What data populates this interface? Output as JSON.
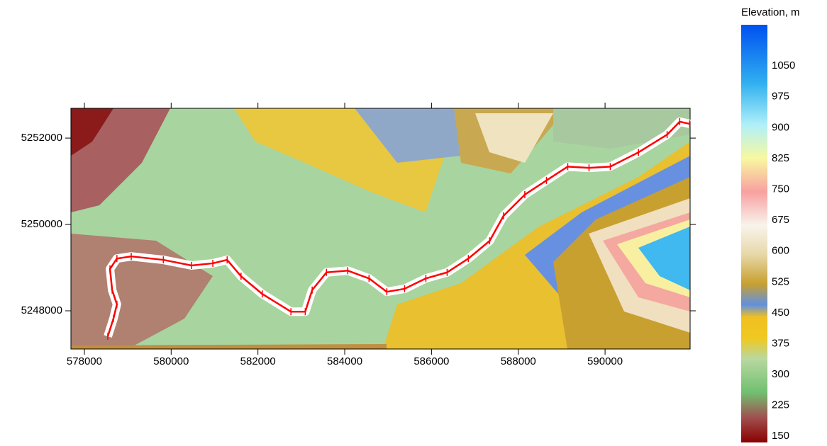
{
  "chart_data": {
    "type": "map",
    "xlim": [
      577690,
      591960
    ],
    "ylim": [
      5247115,
      5252690
    ],
    "xticks": [
      578000,
      580000,
      582000,
      584000,
      586000,
      588000,
      590000
    ],
    "yticks": [
      5248000,
      5250000,
      5252000
    ],
    "route": {
      "color": "#ff0000",
      "x": [
        578540,
        578670,
        578750,
        578640,
        578590,
        578750,
        579080,
        579820,
        580470,
        580960,
        581290,
        581610,
        582100,
        582760,
        583090,
        583250,
        583580,
        584070,
        584560,
        584970,
        585380,
        585870,
        586360,
        586850,
        587340,
        587660,
        588150,
        588650,
        589140,
        589630,
        590120,
        590770,
        591430,
        591720,
        591950
      ],
      "y": [
        5247410,
        5247820,
        5248150,
        5248480,
        5248970,
        5249210,
        5249260,
        5249180,
        5249050,
        5249100,
        5249180,
        5248800,
        5248390,
        5247980,
        5247980,
        5248480,
        5248890,
        5248930,
        5248750,
        5248440,
        5248510,
        5248750,
        5248890,
        5249210,
        5249620,
        5250200,
        5250690,
        5251020,
        5251340,
        5251310,
        5251340,
        5251670,
        5252080,
        5252380,
        5252330
      ]
    },
    "colorbar": {
      "title": "Elevation, m",
      "lim": [
        135,
        1150
      ],
      "ticks": [
        150,
        225,
        300,
        375,
        450,
        525,
        600,
        675,
        750,
        825,
        900,
        975,
        1050
      ]
    }
  }
}
